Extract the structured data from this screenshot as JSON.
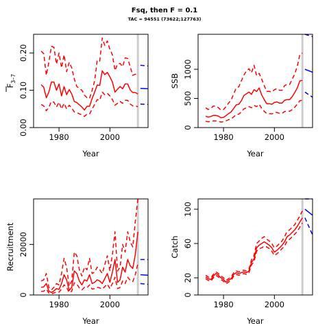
{
  "title": "Fsq, then F = 0.1",
  "subtitle": "TAC = 94551 (73622;127763)",
  "colors": {
    "historic": "#ff0000",
    "projection": "#0000ff",
    "marker": "#cccccc",
    "axis": "#000000"
  },
  "chart_data": [
    {
      "id": "fbar",
      "type": "line",
      "title": "",
      "xlabel": "Year",
      "ylabel_main": "F",
      "ylabel_sub": "3–7",
      "xlim": [
        1970,
        2015
      ],
      "ylim": [
        0,
        0.25
      ],
      "xticks": [
        1980,
        2000
      ],
      "yticks": [
        0.0,
        0.1,
        0.2
      ],
      "yticklabels": [
        "0.00",
        "0.10",
        "0.20"
      ],
      "marker_year": 2011,
      "x": [
        1973,
        1974,
        1975,
        1976,
        1977,
        1978,
        1979,
        1980,
        1981,
        1982,
        1983,
        1984,
        1985,
        1986,
        1987,
        1988,
        1989,
        1990,
        1991,
        1992,
        1993,
        1994,
        1995,
        1996,
        1997,
        1998,
        1999,
        2000,
        2001,
        2002,
        2003,
        2004,
        2005,
        2006,
        2007,
        2008,
        2009,
        2010,
        2011
      ],
      "series": [
        {
          "role": "median",
          "style": "solid",
          "values": [
            0.115,
            0.108,
            0.08,
            0.095,
            0.122,
            0.122,
            0.1,
            0.117,
            0.085,
            0.11,
            0.088,
            0.102,
            0.09,
            0.07,
            0.067,
            0.061,
            0.055,
            0.047,
            0.057,
            0.057,
            0.078,
            0.095,
            0.114,
            0.113,
            0.152,
            0.142,
            0.148,
            0.136,
            0.122,
            0.095,
            0.103,
            0.11,
            0.104,
            0.117,
            0.117,
            0.101,
            0.094,
            0.094,
            0.09
          ]
        },
        {
          "role": "upper",
          "style": "dashed",
          "values": [
            0.205,
            0.198,
            0.14,
            0.175,
            0.218,
            0.215,
            0.17,
            0.2,
            0.16,
            0.195,
            0.15,
            0.175,
            0.16,
            0.13,
            0.11,
            0.105,
            0.1,
            0.087,
            0.08,
            0.078,
            0.1,
            0.125,
            0.18,
            0.178,
            0.24,
            0.22,
            0.232,
            0.21,
            0.195,
            0.153,
            0.17,
            0.172,
            0.163,
            0.187,
            0.185,
            0.163,
            0.14,
            0.143,
            0.141
          ]
        },
        {
          "role": "lower",
          "style": "dashed",
          "values": [
            0.062,
            0.058,
            0.045,
            0.055,
            0.07,
            0.068,
            0.055,
            0.068,
            0.05,
            0.065,
            0.05,
            0.06,
            0.052,
            0.042,
            0.04,
            0.037,
            0.034,
            0.03,
            0.036,
            0.036,
            0.05,
            0.062,
            0.075,
            0.073,
            0.095,
            0.088,
            0.092,
            0.085,
            0.075,
            0.06,
            0.065,
            0.07,
            0.065,
            0.073,
            0.073,
            0.063,
            0.058,
            0.058,
            0.056
          ]
        }
      ],
      "projection": {
        "x": [
          2012,
          2015
        ],
        "series": [
          {
            "role": "median",
            "style": "solid",
            "values": [
              0.105,
              0.104
            ]
          },
          {
            "role": "upper",
            "style": "dashed",
            "values": [
              0.167,
              0.165
            ]
          },
          {
            "role": "lower",
            "style": "dashed",
            "values": [
              0.063,
              0.062
            ]
          }
        ]
      }
    },
    {
      "id": "ssb",
      "type": "line",
      "title": "",
      "xlabel": "Year",
      "ylabel_main": "SSB",
      "xlim": [
        1970,
        2015
      ],
      "ylim": [
        0,
        1600
      ],
      "xticks": [
        1980,
        2000
      ],
      "yticks": [
        0,
        500,
        1000
      ],
      "yticklabels": [
        "0",
        "500",
        "1000"
      ],
      "marker_year": 2011,
      "x": [
        1973,
        1974,
        1975,
        1976,
        1977,
        1978,
        1979,
        1980,
        1981,
        1982,
        1983,
        1984,
        1985,
        1986,
        1987,
        1988,
        1989,
        1990,
        1991,
        1992,
        1993,
        1994,
        1995,
        1996,
        1997,
        1998,
        1999,
        2000,
        2001,
        2002,
        2003,
        2004,
        2005,
        2006,
        2007,
        2008,
        2009,
        2010,
        2011
      ],
      "series": [
        {
          "role": "median",
          "style": "solid",
          "values": [
            195,
            180,
            190,
            210,
            210,
            195,
            170,
            175,
            205,
            240,
            270,
            330,
            390,
            400,
            460,
            550,
            580,
            610,
            570,
            650,
            620,
            680,
            560,
            480,
            410,
            410,
            400,
            430,
            440,
            420,
            420,
            470,
            480,
            480,
            530,
            600,
            680,
            800,
            810
          ]
        },
        {
          "role": "upper",
          "style": "dashed",
          "values": [
            340,
            310,
            330,
            370,
            370,
            340,
            300,
            310,
            360,
            420,
            470,
            580,
            680,
            700,
            800,
            900,
            970,
            1010,
            940,
            1070,
            890,
            930,
            830,
            720,
            620,
            620,
            610,
            650,
            670,
            640,
            640,
            720,
            740,
            740,
            830,
            920,
            1050,
            1250,
            1280
          ]
        },
        {
          "role": "lower",
          "style": "dashed",
          "values": [
            110,
            100,
            105,
            115,
            115,
            105,
            95,
            100,
            115,
            135,
            150,
            185,
            225,
            230,
            270,
            320,
            340,
            360,
            340,
            380,
            360,
            400,
            330,
            280,
            240,
            240,
            235,
            255,
            260,
            245,
            245,
            275,
            280,
            280,
            310,
            350,
            400,
            460,
            470
          ]
        }
      ],
      "projection": {
        "x": [
          2012,
          2015
        ],
        "series": [
          {
            "role": "median",
            "style": "solid",
            "values": [
              1000,
              950
            ]
          },
          {
            "role": "upper",
            "style": "dashed",
            "values": [
              1600,
              1560
            ]
          },
          {
            "role": "lower",
            "style": "dashed",
            "values": [
              610,
              520
            ]
          }
        ]
      }
    },
    {
      "id": "recruitment",
      "type": "line",
      "title": "",
      "xlabel": "Year",
      "ylabel_main": "Recruitment",
      "xlim": [
        1970,
        2015
      ],
      "ylim": [
        0,
        38000
      ],
      "xticks": [
        1980,
        2000
      ],
      "yticks": [
        0,
        20000
      ],
      "yticklabels": [
        "0",
        "20000"
      ],
      "marker_year": 2011,
      "x": [
        1973,
        1974,
        1975,
        1976,
        1977,
        1978,
        1979,
        1980,
        1981,
        1982,
        1983,
        1984,
        1985,
        1986,
        1987,
        1988,
        1989,
        1990,
        1991,
        1992,
        1993,
        1994,
        1995,
        1996,
        1997,
        1998,
        1999,
        2000,
        2001,
        2002,
        2003,
        2004,
        2005,
        2006,
        2007,
        2008,
        2009,
        2010,
        2011
      ],
      "series": [
        {
          "role": "median",
          "style": "solid",
          "values": [
            3000,
            3200,
            4500,
            1500,
            1000,
            1600,
            2500,
            2200,
            4500,
            8000,
            6000,
            1800,
            3000,
            9500,
            8500,
            5500,
            4000,
            6000,
            5500,
            8000,
            4500,
            5000,
            6000,
            5500,
            4500,
            6500,
            8500,
            5000,
            9000,
            14000,
            5000,
            6000,
            11000,
            9000,
            14000,
            11500,
            10500,
            16000,
            25000
          ]
        },
        {
          "role": "upper",
          "style": "dashed",
          "values": [
            5500,
            6000,
            8500,
            3000,
            2000,
            3000,
            4500,
            4000,
            8500,
            14500,
            11000,
            3500,
            5500,
            17000,
            15500,
            10000,
            7500,
            11000,
            10000,
            14500,
            8500,
            9000,
            11000,
            10000,
            8500,
            12000,
            15500,
            9500,
            16000,
            25000,
            9500,
            11000,
            20000,
            17000,
            25000,
            21000,
            19000,
            29000,
            38000
          ]
        },
        {
          "role": "lower",
          "style": "dashed",
          "values": [
            1400,
            1500,
            2300,
            700,
            500,
            800,
            1200,
            1100,
            2300,
            4000,
            3000,
            900,
            1500,
            4800,
            4300,
            2800,
            2000,
            3000,
            2800,
            4000,
            2300,
            2500,
            3000,
            2800,
            2300,
            3300,
            4300,
            2500,
            4500,
            7000,
            2500,
            3000,
            5500,
            4500,
            7000,
            5800,
            5300,
            8000,
            12500
          ]
        }
      ],
      "projection": {
        "x": [
          2012,
          2015
        ],
        "series": [
          {
            "role": "median",
            "style": "solid",
            "values": [
              8000,
              7800
            ]
          },
          {
            "role": "upper",
            "style": "dashed",
            "values": [
              14000,
              14000
            ]
          },
          {
            "role": "lower",
            "style": "dashed",
            "values": [
              4500,
              4200
            ]
          }
        ]
      }
    },
    {
      "id": "catch",
      "type": "line",
      "title": "",
      "xlabel": "Year",
      "ylabel_main": "Catch",
      "xlim": [
        1970,
        2015
      ],
      "ylim": [
        0,
        112
      ],
      "xticks": [
        1980,
        2000
      ],
      "yticks": [
        0,
        20,
        60,
        100
      ],
      "yticklabels": [
        "0",
        "20",
        "60",
        "100"
      ],
      "marker_year": 2011,
      "x": [
        1973,
        1974,
        1975,
        1976,
        1977,
        1978,
        1979,
        1980,
        1981,
        1982,
        1983,
        1984,
        1985,
        1986,
        1987,
        1988,
        1989,
        1990,
        1991,
        1992,
        1993,
        1994,
        1995,
        1996,
        1997,
        1998,
        1999,
        2000,
        2001,
        2002,
        2003,
        2004,
        2005,
        2006,
        2007,
        2008,
        2009,
        2010,
        2011
      ],
      "series": [
        {
          "role": "median",
          "style": "solid",
          "values": [
            21,
            19,
            18,
            22,
            25,
            23,
            20,
            18,
            15,
            17,
            19,
            24,
            26,
            25,
            26,
            27,
            26,
            28,
            38,
            42,
            55,
            58,
            60,
            62,
            60,
            58,
            55,
            50,
            52,
            55,
            58,
            62,
            68,
            70,
            73,
            76,
            80,
            85,
            90
          ]
        },
        {
          "role": "upper",
          "style": "dashed",
          "values": [
            23,
            21,
            20,
            24,
            27,
            25,
            22,
            20,
            17,
            19,
            21,
            26,
            28,
            27,
            28,
            29,
            28,
            30,
            41,
            46,
            60,
            63,
            66,
            68,
            65,
            63,
            60,
            55,
            57,
            60,
            63,
            68,
            74,
            76,
            79,
            82,
            87,
            92,
            98
          ]
        },
        {
          "role": "lower",
          "style": "dashed",
          "values": [
            19,
            17,
            16,
            20,
            23,
            21,
            18,
            16,
            13,
            15,
            17,
            22,
            24,
            23,
            24,
            25,
            24,
            26,
            35,
            39,
            51,
            54,
            55,
            57,
            56,
            54,
            51,
            46,
            48,
            51,
            54,
            57,
            63,
            65,
            68,
            71,
            74,
            79,
            84
          ]
        }
      ],
      "projection": {
        "x": [
          2012,
          2015
        ],
        "series": [
          {
            "role": "median",
            "style": "solid",
            "values": [
              100,
              93
            ]
          },
          {
            "role": "upper",
            "style": "dashed",
            "values": [
              112,
              112
            ]
          },
          {
            "role": "lower",
            "style": "dashed",
            "values": [
              90,
              70
            ]
          }
        ]
      }
    }
  ]
}
